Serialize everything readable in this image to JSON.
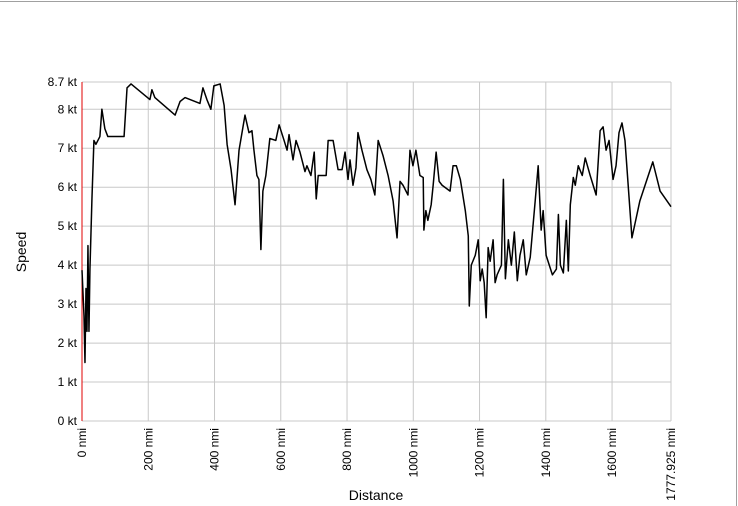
{
  "chart_data": {
    "type": "line",
    "xlabel": "Distance",
    "ylabel": "Speed",
    "color": "#000000",
    "grid": true,
    "xlim": [
      0,
      1777.925
    ],
    "ylim": [
      0,
      8.7
    ],
    "xticks": [
      {
        "value": 0,
        "label": "0 nmi"
      },
      {
        "value": 200,
        "label": "200 nmi"
      },
      {
        "value": 400,
        "label": "400 nmi"
      },
      {
        "value": 600,
        "label": "600 nmi"
      },
      {
        "value": 800,
        "label": "800 nmi"
      },
      {
        "value": 1000,
        "label": "1000 nmi"
      },
      {
        "value": 1200,
        "label": "1200 nmi"
      },
      {
        "value": 1400,
        "label": "1400 nmi"
      },
      {
        "value": 1600,
        "label": "1600 nmi"
      },
      {
        "value": 1777.925,
        "label": "1777.925 nmi"
      }
    ],
    "yticks": [
      {
        "value": 0,
        "label": "0 kt"
      },
      {
        "value": 1,
        "label": "1 kt"
      },
      {
        "value": 2,
        "label": "2 kt"
      },
      {
        "value": 3,
        "label": "3 kt"
      },
      {
        "value": 4,
        "label": "4 kt"
      },
      {
        "value": 5,
        "label": "5 kt"
      },
      {
        "value": 6,
        "label": "6 kt"
      },
      {
        "value": 7,
        "label": "7 kt"
      },
      {
        "value": 8,
        "label": "8 kt"
      },
      {
        "value": 8.7,
        "label": "8.7 kt"
      }
    ],
    "x": [
      0,
      6,
      9,
      12,
      15,
      18,
      21,
      24,
      30,
      36,
      42,
      54,
      60,
      69,
      78,
      127,
      136,
      148,
      205,
      211,
      220,
      281,
      296,
      311,
      356,
      365,
      377,
      389,
      398,
      417,
      429,
      438,
      450,
      462,
      474,
      492,
      504,
      513,
      519,
      528,
      534,
      540,
      546,
      555,
      567,
      585,
      595,
      610,
      619,
      625,
      637,
      646,
      658,
      673,
      679,
      691,
      701,
      707,
      713,
      737,
      743,
      758,
      773,
      785,
      794,
      803,
      809,
      818,
      827,
      833,
      845,
      860,
      872,
      884,
      894,
      909,
      924,
      939,
      951,
      960,
      969,
      984,
      990,
      999,
      1008,
      1020,
      1030,
      1032,
      1038,
      1044,
      1054,
      1060,
      1069,
      1078,
      1087,
      1111,
      1120,
      1130,
      1142,
      1157,
      1166,
      1169,
      1175,
      1187,
      1196,
      1202,
      1208,
      1214,
      1220,
      1226,
      1232,
      1241,
      1247,
      1253,
      1266,
      1272,
      1278,
      1287,
      1296,
      1305,
      1314,
      1322,
      1332,
      1341,
      1353,
      1368,
      1377,
      1386,
      1392,
      1401,
      1420,
      1432,
      1438,
      1444,
      1453,
      1462,
      1468,
      1474,
      1483,
      1489,
      1498,
      1510,
      1519,
      1534,
      1552,
      1564,
      1573,
      1582,
      1591,
      1603,
      1612,
      1621,
      1630,
      1639,
      1660,
      1684,
      1723,
      1745,
      1777.925
    ],
    "values": [
      3.87,
      2.7,
      1.5,
      3.4,
      2.3,
      4.5,
      2.3,
      3.9,
      5.7,
      7.2,
      7.1,
      7.3,
      8.0,
      7.5,
      7.3,
      7.3,
      8.55,
      8.65,
      8.25,
      8.5,
      8.3,
      7.85,
      8.2,
      8.3,
      8.15,
      8.55,
      8.25,
      8.0,
      8.6,
      8.65,
      8.1,
      7.1,
      6.45,
      5.55,
      6.95,
      7.85,
      7.4,
      7.45,
      6.95,
      6.3,
      6.2,
      4.4,
      5.9,
      6.3,
      7.25,
      7.2,
      7.6,
      7.2,
      6.95,
      7.35,
      6.7,
      7.2,
      6.9,
      6.4,
      6.55,
      6.3,
      6.9,
      5.7,
      6.3,
      6.3,
      7.2,
      7.2,
      6.45,
      6.45,
      6.9,
      6.2,
      6.7,
      6.05,
      6.5,
      7.4,
      6.95,
      6.45,
      6.2,
      5.8,
      7.2,
      6.8,
      6.3,
      5.65,
      4.7,
      6.15,
      6.05,
      5.8,
      6.95,
      6.55,
      6.95,
      6.3,
      6.25,
      4.9,
      5.4,
      5.15,
      5.55,
      6.05,
      6.9,
      6.15,
      6.05,
      5.9,
      6.55,
      6.55,
      6.2,
      5.4,
      4.75,
      2.95,
      4.0,
      4.25,
      4.65,
      3.6,
      3.9,
      3.55,
      2.65,
      4.45,
      4.1,
      4.65,
      3.55,
      3.75,
      4.0,
      6.2,
      3.65,
      4.65,
      4.0,
      4.85,
      3.6,
      4.25,
      4.65,
      3.75,
      4.2,
      5.65,
      6.55,
      4.9,
      5.4,
      4.25,
      3.75,
      3.9,
      5.3,
      4.0,
      3.8,
      5.15,
      3.85,
      5.55,
      6.25,
      6.05,
      6.55,
      6.3,
      6.75,
      6.3,
      5.8,
      7.45,
      7.55,
      6.95,
      7.2,
      6.2,
      6.55,
      7.4,
      7.65,
      7.2,
      4.7,
      5.65,
      6.65,
      5.9,
      5.5
    ]
  }
}
